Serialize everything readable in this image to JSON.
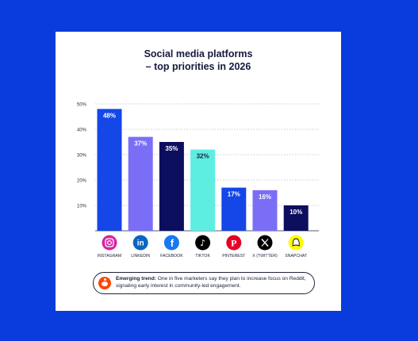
{
  "title_lines": [
    "Social media platforms",
    "– top priorities in 2026"
  ],
  "chart_data": {
    "type": "bar",
    "title": "Social media platforms – top priorities in 2026",
    "categories": [
      "INSTAGRAM",
      "LINKEDIN",
      "FACEBOOK",
      "TIKTOK",
      "PINTEREST",
      "X (TWITTER)",
      "SNAPCHAT"
    ],
    "values": [
      48,
      37,
      35,
      32,
      17,
      16,
      10
    ],
    "value_labels": [
      "48%",
      "37%",
      "35%",
      "32%",
      "17%",
      "16%",
      "10%"
    ],
    "bar_colors": [
      "#1446e8",
      "#7b6ef6",
      "#0c0e5e",
      "#5eeee1",
      "#1446e8",
      "#7b6ef6",
      "#0c0e5e"
    ],
    "label_colors": [
      "#ffffff",
      "#ffffff",
      "#ffffff",
      "#1c1f3a",
      "#ffffff",
      "#ffffff",
      "#ffffff"
    ],
    "icons": [
      "instagram-icon",
      "linkedin-icon",
      "facebook-icon",
      "tiktok-icon",
      "pinterest-icon",
      "x-twitter-icon",
      "snapchat-icon"
    ],
    "ylim": [
      0,
      50
    ],
    "yticks": [
      10,
      20,
      30,
      40,
      50
    ],
    "ytick_labels": [
      "10%",
      "20%",
      "30%",
      "40%",
      "50%"
    ],
    "grid": true,
    "xlabel": "",
    "ylabel": ""
  },
  "callout": {
    "heading": "Emerging trend:",
    "text": " One in five marketers say they plan to increase focus on Reddit, signaling early interest in community-led engagement.",
    "icon": "reddit-icon"
  }
}
